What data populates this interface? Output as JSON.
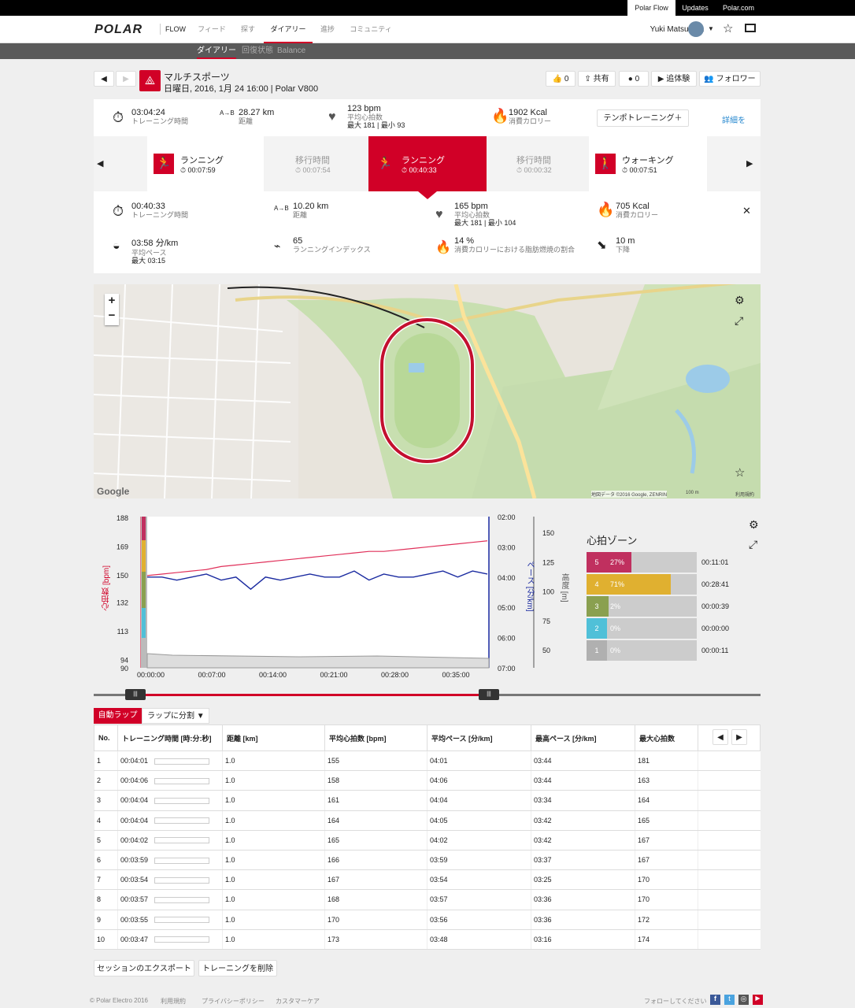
{
  "topbar": {
    "links": [
      "Polar Flow",
      "Updates",
      "Polar.com"
    ]
  },
  "header": {
    "logo": "POLAR",
    "flow": "FLOW",
    "nav": [
      "フィード",
      "探す",
      "ダイアリー",
      "進捗",
      "コミュニティ"
    ],
    "user": "Yuki Matsukura"
  },
  "subnav": [
    "ダイアリー",
    "回復状態",
    "Balance"
  ],
  "session": {
    "title": "マルチスポーツ",
    "subtitle": "日曜日, 2016, 1月 24 16:00 | Polar V800",
    "actions": [
      "0",
      "共有",
      "0",
      "追体験",
      "フォロワー"
    ]
  },
  "summary": {
    "duration": "03:04:24",
    "duration_label": "トレーニング時間",
    "distance": "28.27 km",
    "distance_label": "距離",
    "hr": "123 bpm",
    "hr_label": "平均心拍数",
    "hr_minmax": "最大 181 | 最小 93",
    "kcal": "1902 Kcal",
    "kcal_label": "消費カロリー",
    "tempo_btn": "テンポトレーニング＋",
    "details": "詳細を"
  },
  "tiles": [
    {
      "name": "ランニング",
      "time": "00:07:59"
    },
    {
      "name": "移行時間",
      "time": "00:07:54"
    },
    {
      "name": "ランニング",
      "time": "00:40:33"
    },
    {
      "name": "移行時間",
      "time": "00:00:32"
    },
    {
      "name": "ウォーキング",
      "time": "00:07:51"
    }
  ],
  "detail": {
    "duration": "00:40:33",
    "duration_label": "トレーニング時間",
    "distance": "10.20 km",
    "distance_label": "距離",
    "hr": "165 bpm",
    "hr_label": "平均心拍数",
    "hr_minmax": "最大 181 | 最小 104",
    "kcal": "705 Kcal",
    "kcal_label": "消費カロリー",
    "pace": "03:58 分/km",
    "pace_label": "平均ペース",
    "pace_max": "最大 03:15",
    "ri": "65",
    "ri_label": "ランニングインデックス",
    "fat": "14 %",
    "fat_label": "消費カロリーにおける脂肪燃焼の割合",
    "descent": "10 m",
    "descent_label": "下降"
  },
  "map": {
    "google": "Google",
    "attribution": "地図データ ©2016 Google, ZENRIN",
    "scale": "100 m",
    "terms": "利用規約"
  },
  "chart_data": {
    "type": "line",
    "x_ticks": [
      "00:00:00",
      "00:07:00",
      "00:14:00",
      "00:21:00",
      "00:28:00",
      "00:35:00"
    ],
    "hr_ticks": [
      "188",
      "169",
      "150",
      "132",
      "113",
      "94",
      "90"
    ],
    "pace_ticks": [
      "02:00",
      "03:00",
      "04:00",
      "05:00",
      "06:00",
      "07:00"
    ],
    "alt_ticks": [
      "150",
      "125",
      "100",
      "75",
      "50"
    ],
    "ylabel_hr": "心拍数 [bpm]",
    "ylabel_pace": "ペース [分/km]",
    "ylabel_alt": "高度 [m]",
    "series": [
      {
        "name": "心拍数",
        "values": [
          150,
          151,
          152,
          153,
          154,
          156,
          157,
          158,
          159,
          160,
          161,
          162,
          163,
          164,
          165,
          166,
          166,
          167,
          168,
          169,
          170,
          171,
          172,
          173
        ]
      },
      {
        "name": "ペース",
        "values": [
          4.0,
          4.0,
          4.1,
          4.0,
          3.9,
          4.1,
          4.0,
          4.4,
          4.0,
          4.1,
          4.0,
          3.9,
          4.0,
          4.0,
          3.8,
          4.1,
          3.9,
          4.0,
          4.0,
          3.9,
          3.8,
          4.0,
          3.8,
          3.9
        ]
      }
    ]
  },
  "zones": {
    "title": "心拍ゾーン",
    "rows": [
      {
        "zone": "5",
        "pct": "27%",
        "time": "00:11:01",
        "color": "#c0305f",
        "frac": 0.27
      },
      {
        "zone": "4",
        "pct": "71%",
        "time": "00:28:41",
        "color": "#e0b030",
        "frac": 0.71
      },
      {
        "zone": "3",
        "pct": "2%",
        "time": "00:00:39",
        "color": "#8aa050",
        "frac": 0.02
      },
      {
        "zone": "2",
        "pct": "0%",
        "time": "00:00:00",
        "color": "#50c0d8",
        "frac": 0
      },
      {
        "zone": "1",
        "pct": "0%",
        "time": "00:00:11",
        "color": "#b0b0b0",
        "frac": 0
      }
    ]
  },
  "laps": {
    "tab_auto": "自動ラップ",
    "tab_split": "ラップに分割",
    "headers": [
      "No.",
      "トレーニング時間 [時:分:秒]",
      "距離 [km]",
      "平均心拍数 [bpm]",
      "平均ペース [分/km]",
      "最高ペース [分/km]",
      "最大心拍数"
    ],
    "rows": [
      [
        "1",
        "00:04:01",
        "1.0",
        "155",
        "04:01",
        "03:44",
        "181"
      ],
      [
        "2",
        "00:04:06",
        "1.0",
        "158",
        "04:06",
        "03:44",
        "163"
      ],
      [
        "3",
        "00:04:04",
        "1.0",
        "161",
        "04:04",
        "03:34",
        "164"
      ],
      [
        "4",
        "00:04:04",
        "1.0",
        "164",
        "04:05",
        "03:42",
        "165"
      ],
      [
        "5",
        "00:04:02",
        "1.0",
        "165",
        "04:02",
        "03:42",
        "167"
      ],
      [
        "6",
        "00:03:59",
        "1.0",
        "166",
        "03:59",
        "03:37",
        "167"
      ],
      [
        "7",
        "00:03:54",
        "1.0",
        "167",
        "03:54",
        "03:25",
        "170"
      ],
      [
        "8",
        "00:03:57",
        "1.0",
        "168",
        "03:57",
        "03:36",
        "170"
      ],
      [
        "9",
        "00:03:55",
        "1.0",
        "170",
        "03:56",
        "03:36",
        "172"
      ],
      [
        "10",
        "00:03:47",
        "1.0",
        "173",
        "03:48",
        "03:16",
        "174"
      ]
    ]
  },
  "bottom": {
    "export": "セッションのエクスポート",
    "delete": "トレーニングを削除"
  },
  "footer": {
    "copyright": "© Polar Electro 2016",
    "links": [
      "利用規約",
      "プライバシーポリシー",
      "カスタマーケア"
    ],
    "follow": "フォローしてください"
  }
}
